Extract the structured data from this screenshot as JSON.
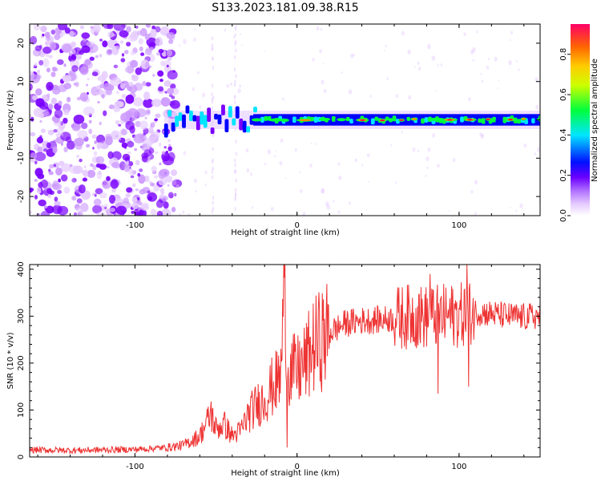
{
  "title": "S133.2023.181.09.38.R15",
  "chart_data": [
    {
      "type": "heatmap",
      "xlabel": "Height of straight line (km)",
      "ylabel": "Frequency (Hz)",
      "xlim": [
        -165,
        150
      ],
      "ylim": [
        -25,
        25
      ],
      "xticks": [
        -100,
        0,
        100
      ],
      "yticks": [
        -20,
        -10,
        0,
        10,
        20
      ],
      "colorbar": {
        "label": "Normalized spectral amplitude",
        "range": [
          0,
          0.95
        ],
        "ticks": [
          0.0,
          0.2,
          0.4,
          0.6,
          0.8
        ]
      },
      "noise_region_x": [
        -165,
        -80
      ],
      "signal_band_x": [
        -82,
        150
      ],
      "signal_band_freq_center": 0,
      "signal_band_freq_halfwidth": 1.5,
      "colormap": [
        "#ffffff",
        "#e6ccff",
        "#cc99ff",
        "#7a00ff",
        "#0000ff",
        "#00e5ff",
        "#00ff3c",
        "#ffff00",
        "#ff8800",
        "#ff0040"
      ]
    },
    {
      "type": "line",
      "xlabel": "Height of straight line (km)",
      "ylabel": "SNR (10 * v/v)",
      "xlim": [
        -165,
        150
      ],
      "ylim": [
        0,
        410
      ],
      "xticks": [
        -100,
        0,
        100
      ],
      "yticks": [
        0,
        100,
        200,
        300,
        400
      ],
      "series": [
        {
          "color": "#ee3333",
          "x": [
            -165,
            -140,
            -120,
            -100,
            -80,
            -70,
            -60,
            -53,
            -50,
            -45,
            -40,
            -35,
            -30,
            -25,
            -20,
            -15,
            -10,
            -8,
            -5,
            0,
            5,
            10,
            20,
            30,
            40,
            50,
            60,
            70,
            80,
            90,
            100,
            110,
            120,
            130,
            140,
            150
          ],
          "y": [
            15,
            14,
            15,
            16,
            20,
            25,
            45,
            90,
            60,
            70,
            45,
            55,
            90,
            110,
            125,
            150,
            170,
            380,
            185,
            180,
            200,
            235,
            265,
            285,
            290,
            292,
            295,
            300,
            298,
            300,
            302,
            310,
            305,
            300,
            298,
            300
          ],
          "spikes": [
            [
              -53,
              118
            ],
            [
              -8,
              382
            ],
            [
              -6,
              20
            ],
            [
              75,
              345
            ],
            [
              82,
              390
            ],
            [
              87,
              135
            ],
            [
              105,
              410
            ],
            [
              106,
              150
            ]
          ]
        }
      ]
    }
  ]
}
